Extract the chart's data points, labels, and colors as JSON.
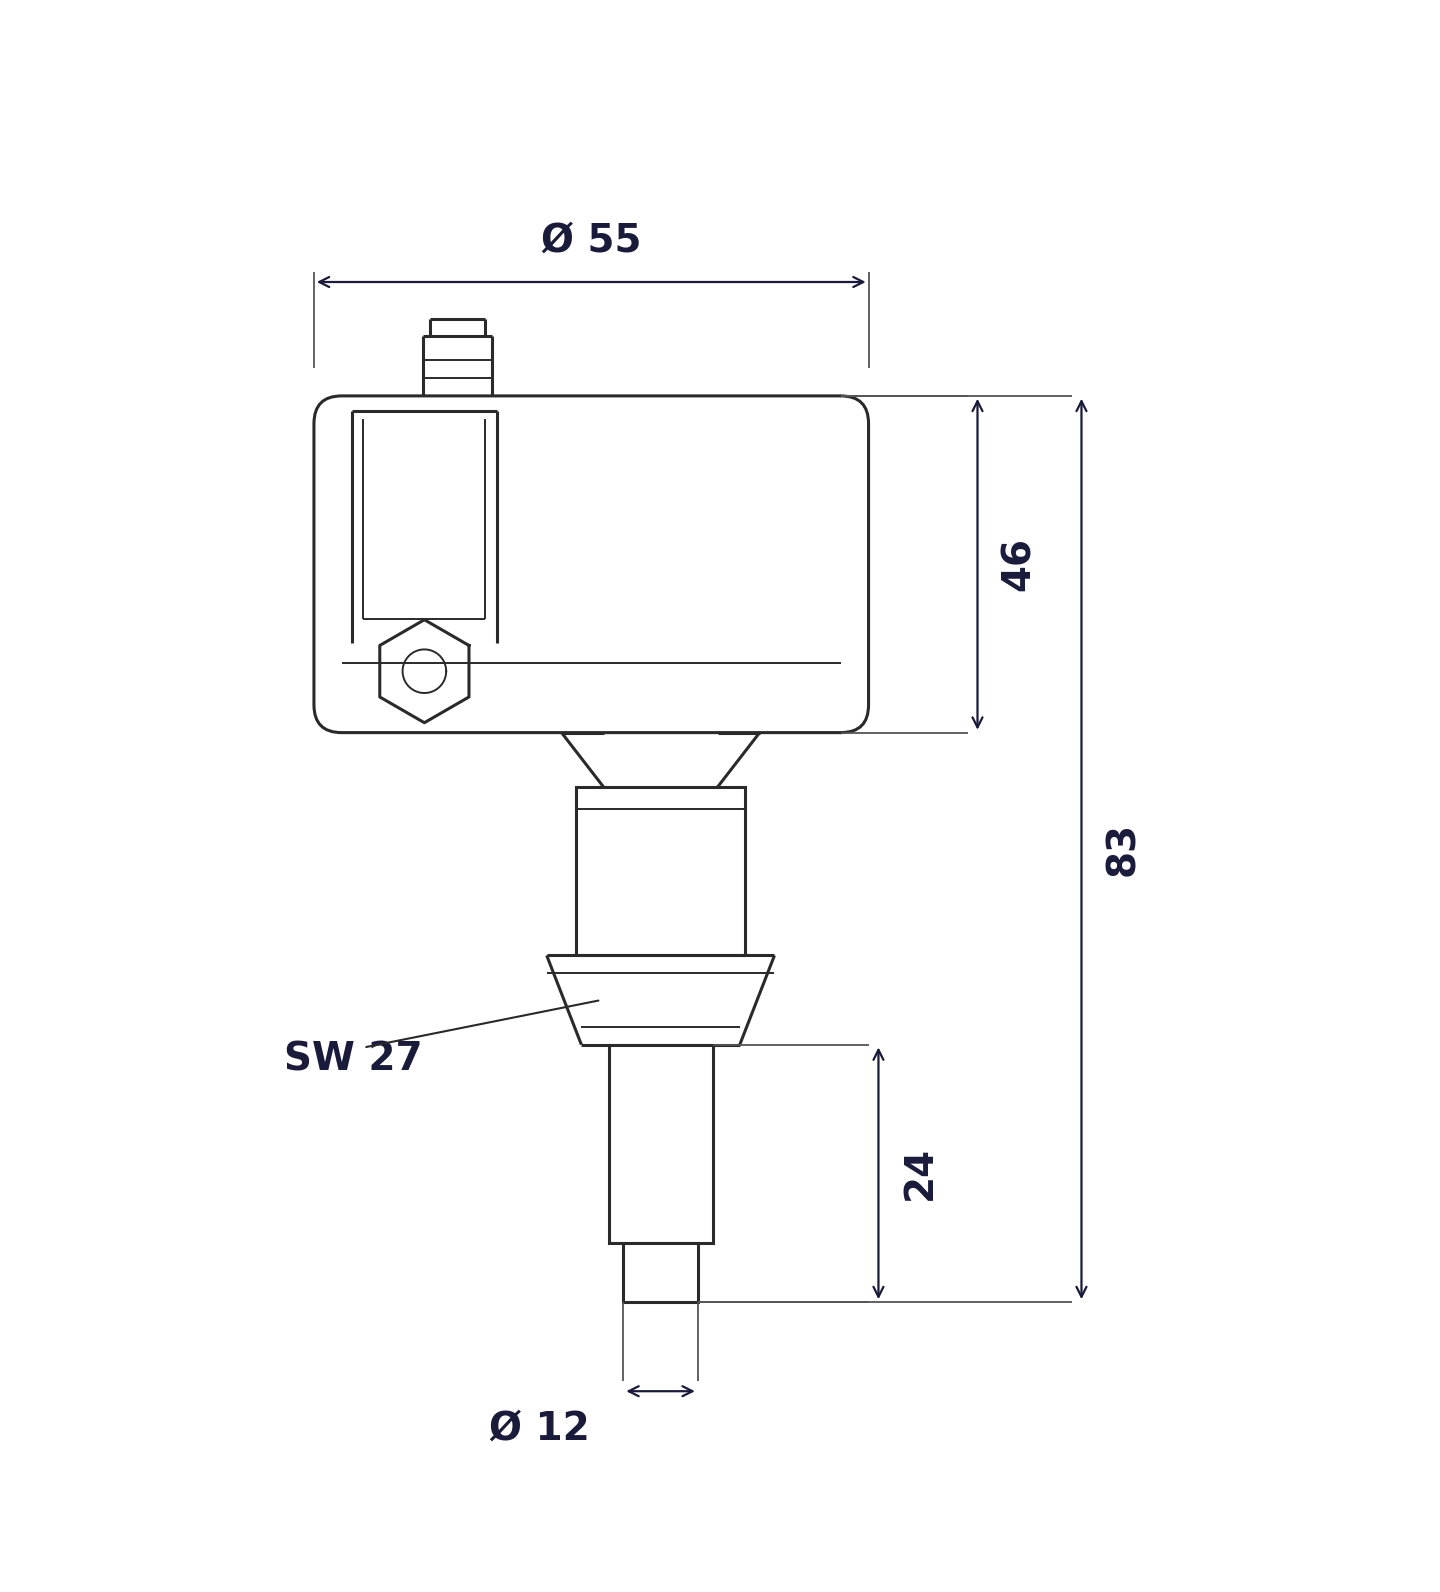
{
  "bg_color": "#ffffff",
  "line_color": "#2a2a2a",
  "dim_color": "#1a1a3a",
  "figsize": [
    14.4,
    15.92
  ],
  "dpi": 100,
  "dimensions": {
    "phi55_label": "Ø 55",
    "phi12_label": "Ø 12",
    "dim46": "46",
    "dim83": "83",
    "dim24": "24",
    "sw27": "SW 27"
  }
}
